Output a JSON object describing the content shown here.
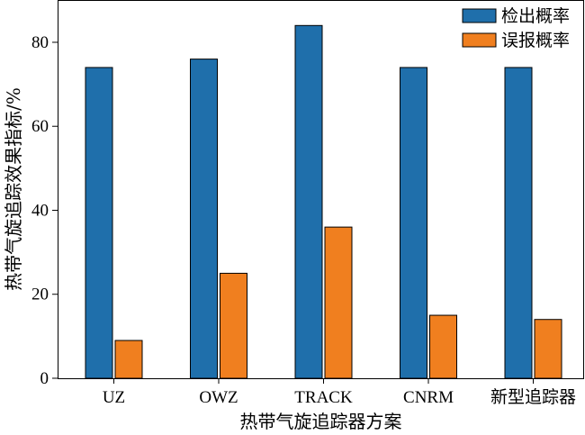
{
  "chart_data": {
    "type": "bar",
    "categories": [
      "UZ",
      "OWZ",
      "TRACK",
      "CNRM",
      "新型追踪器"
    ],
    "series": [
      {
        "name": "检出概率",
        "values": [
          74,
          76,
          84,
          74,
          74
        ],
        "color": "#1f6fab"
      },
      {
        "name": "误报概率",
        "values": [
          9,
          25,
          36,
          15,
          14
        ],
        "color": "#f07f1f"
      }
    ],
    "xlabel": "热带气旋追踪器方案",
    "ylabel": "热带气旋追踪效果指标/%",
    "ylim": [
      0,
      80
    ],
    "yticks": [
      0,
      20,
      40,
      60,
      80
    ],
    "grid": false,
    "legend_position": "top-right"
  }
}
